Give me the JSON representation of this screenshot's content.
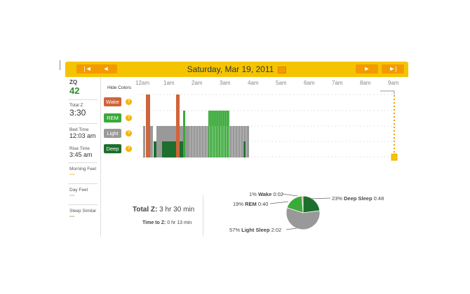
{
  "header": {
    "title": "Saturday, Mar 19, 2011",
    "first_label": "|◄",
    "prev_label": "◄",
    "next_label": "►",
    "last_label": "►|"
  },
  "sidebar": {
    "zq_label": "ZQ",
    "zq_value": "42",
    "total_z_label": "Total Z",
    "total_z_value": "3:30",
    "bed_time_label": "Bed Time",
    "bed_time_value": "12:03 am",
    "rise_time_label": "Rise Time",
    "rise_time_value": "3:45 am",
    "morning_feel_label": "Morning Feel",
    "morning_feel_value": "--",
    "day_feel_label": "Day Feel",
    "day_feel_value": "--",
    "sleep_similar_label": "Sleep Similar",
    "sleep_similar_value": "--"
  },
  "graph": {
    "hide_colors": "Hide Colors",
    "hours": [
      "12am",
      "1am",
      "2am",
      "3am",
      "4am",
      "5am",
      "6am",
      "7am",
      "8am",
      "9am"
    ],
    "legend": {
      "wake": "Wake",
      "rem": "REM",
      "light": "Light",
      "deep": "Deep"
    },
    "help": "?"
  },
  "colors": {
    "wake": "#d0643a",
    "rem": "#3aaa3a",
    "light": "#999999",
    "deep": "#1e6e2e",
    "accent": "#f5c400",
    "button": "#f39a00"
  },
  "summary": {
    "total_z_label": "Total Z:",
    "total_z_value": "3 hr 30 min",
    "time_to_z_label": "Time to Z:",
    "time_to_z_value": "0 hr 13 min"
  },
  "chart_data": {
    "type": "pie",
    "slices": [
      {
        "pct": "1%",
        "name": "Wake",
        "time": "0:02",
        "value": 1
      },
      {
        "pct": "19%",
        "name": "REM",
        "time": "0:40",
        "value": 19
      },
      {
        "pct": "23%",
        "name": "Deep Sleep",
        "time": "0:48",
        "value": 23
      },
      {
        "pct": "57%",
        "name": "Light Sleep",
        "time": "2:02",
        "value": 57
      }
    ]
  }
}
